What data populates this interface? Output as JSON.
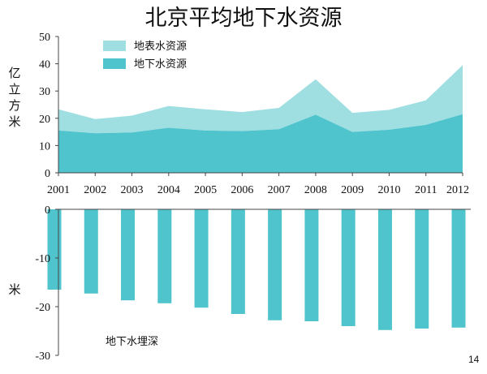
{
  "title": "北京平均地下水资源",
  "page_number": "14",
  "colors": {
    "surface": "#9fdfe2",
    "ground": "#4fc4cc",
    "bar": "#4fc4cc",
    "axis": "#444444"
  },
  "chart_data": [
    {
      "type": "area",
      "stacked": true,
      "x": [
        "2001",
        "2002",
        "2003",
        "2004",
        "2005",
        "2006",
        "2007",
        "2008",
        "2009",
        "2010",
        "2011",
        "2012"
      ],
      "series": [
        {
          "name": "地下水资源",
          "values": [
            15.5,
            14.5,
            14.8,
            16.5,
            15.5,
            15.3,
            16.0,
            21.3,
            15.0,
            15.8,
            17.6,
            21.5
          ]
        },
        {
          "name": "地表水资源",
          "values": [
            7.8,
            5.2,
            6.2,
            8.0,
            7.8,
            7.0,
            7.8,
            13.0,
            7.0,
            7.3,
            9.0,
            18.0
          ]
        }
      ],
      "ylabel": "亿立方米",
      "ylim": [
        0,
        50
      ],
      "yticks": [
        0,
        10,
        20,
        30,
        40,
        50
      ],
      "legend": "top-left"
    },
    {
      "type": "bar",
      "categories": [
        "2001",
        "2002",
        "2003",
        "2004",
        "2005",
        "2006",
        "2007",
        "2008",
        "2009",
        "2010",
        "2011",
        "2012"
      ],
      "values": [
        -16.5,
        -17.3,
        -18.7,
        -19.3,
        -20.2,
        -21.5,
        -22.8,
        -23.0,
        -24.0,
        -24.8,
        -24.5,
        -24.3
      ],
      "ylabel": "米",
      "ylim": [
        -30,
        0
      ],
      "yticks": [
        0,
        -10,
        -20,
        -30
      ],
      "annotation": "地下水埋深"
    }
  ]
}
